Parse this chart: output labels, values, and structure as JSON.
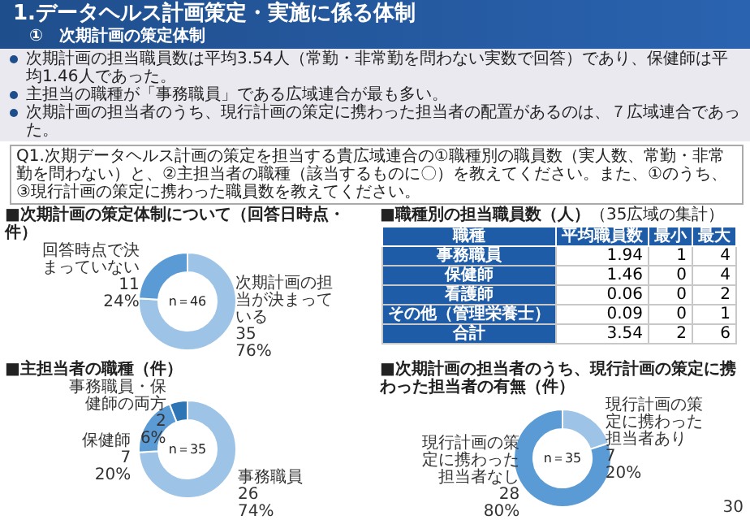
{
  "chart_data": [
    {
      "type": "other",
      "title": "1.データヘルス計画策定・実施に係る体制",
      "subtitle": "①　次期計画の策定体制",
      "annotations": [
        "次期計画の担当職員数は平均3.54人（常勤・非常勤を問わない実数で回答）であり、保健師は平均1.46人であった。",
        "主担当の職種が「事務職員」である広域連合が最も多い。",
        "次期計画の担当者のうち、現行計画の策定に携わった担当者の配置があるのは、７広域連合であった。",
        "Q1.次期データヘルス計画の策定を担当する貴広域連合の①職種別の職員数（実人数、常勤・非常勤を問わない）と、②主担当者の職種（該当するものに〇）を教えてください。また、①のうち、③現行計画の策定に携わった職員数を教えてください。",
        "30"
      ]
    },
    {
      "type": "donut",
      "title": "■次期計画の策定体制について（回答日時点・件）",
      "categories": [
        "次期計画の担当が決まっている",
        "回答時点で決まっていない"
      ],
      "values": [
        76,
        24
      ],
      "colors": [
        "#9dc3e6",
        "#5b9bd5"
      ],
      "value_labels": [
        "35\n76%",
        "11\n24%"
      ],
      "annotations": [
        "n＝46"
      ]
    },
    {
      "type": "heatmap",
      "title": "■職種別の担当職員数（人）",
      "subtitle": "（35広域の集計）",
      "ylabel": "職種",
      "data_labels": true,
      "categories": [
        "平均職員数",
        "最小",
        "最大"
      ],
      "y_categories": [
        "事務職員",
        "保健師",
        "看護師",
        "その他（管理栄養士）",
        "合計"
      ],
      "cells": [
        [
          1.94,
          1,
          4
        ],
        [
          1.46,
          0,
          4
        ],
        [
          0.06,
          0,
          2
        ],
        [
          0.09,
          0,
          1
        ],
        [
          3.54,
          2,
          6
        ]
      ]
    },
    {
      "type": "donut",
      "title": "■主担当者の職種（件）",
      "categories": [
        "事務職員",
        "保健師",
        "事務職員・保健師の両方"
      ],
      "values": [
        74,
        20,
        6
      ],
      "colors": [
        "#9dc3e6",
        "#5b9bd5",
        "#2e75b6"
      ],
      "value_labels": [
        "26\n74%",
        "7\n20%",
        "2\n6%"
      ],
      "annotations": [
        "n＝35"
      ]
    },
    {
      "type": "donut",
      "title": "■次期計画の担当者のうち、現行計画の策定に携わった担当者の有無（件）",
      "categories": [
        "現行計画の策定に携わった担当者あり",
        "現行計画の策定に携わった担当者なし"
      ],
      "values": [
        20,
        80
      ],
      "colors": [
        "#9dc3e6",
        "#5b9bd5"
      ],
      "value_labels": [
        "7\n20%",
        "28\n80%"
      ],
      "annotations": [
        "n＝35"
      ]
    }
  ]
}
